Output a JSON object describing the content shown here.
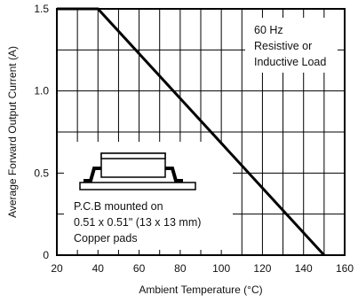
{
  "chart_data": {
    "type": "line",
    "title": "",
    "xlabel": "Ambient Temperature (°C)",
    "ylabel": "Average Forward Output Current (A)",
    "xlim": [
      20,
      160
    ],
    "ylim": [
      0,
      1.5
    ],
    "x_ticks": [
      20,
      40,
      60,
      80,
      100,
      120,
      140,
      160
    ],
    "x_tick_labels": [
      "20",
      "40",
      "60",
      "80",
      "100",
      "120",
      "140",
      "160"
    ],
    "y_ticks": [
      0,
      0.5,
      1.0,
      1.5
    ],
    "y_tick_labels": [
      "0",
      "0.5",
      "1.0",
      "1.5"
    ],
    "grid": true,
    "series": [
      {
        "x": [
          20,
          40,
          150
        ],
        "y": [
          1.5,
          1.5,
          0
        ]
      }
    ],
    "annotations": {
      "top_right": [
        "60 Hz",
        "Resistive or",
        "Inductive Load"
      ],
      "bottom_left": [
        "P.C.B mounted on",
        "0.51 x 0.51\" (13 x 13 mm)",
        "Copper pads"
      ]
    }
  }
}
